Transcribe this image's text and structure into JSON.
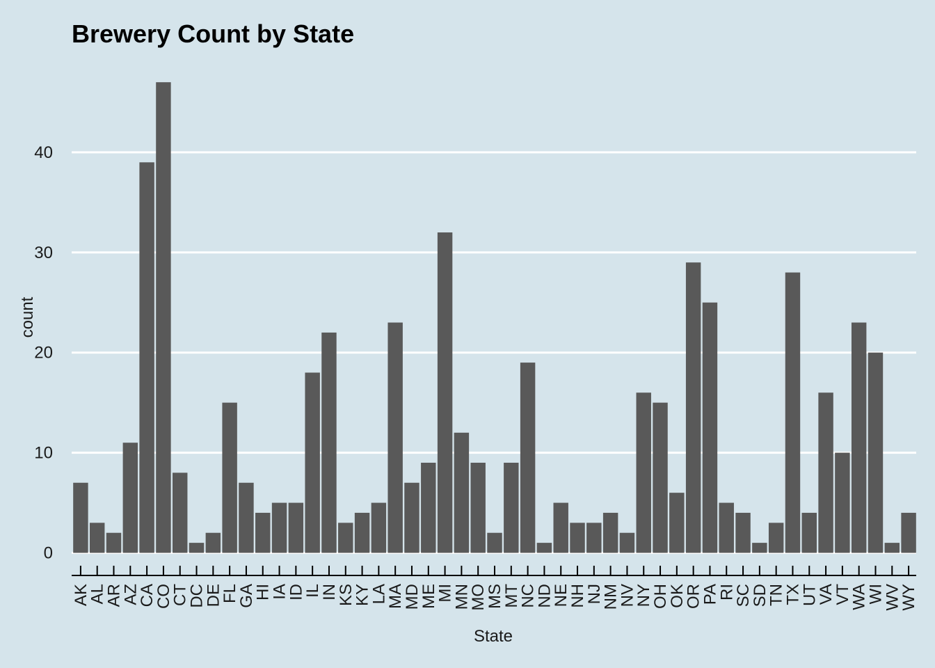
{
  "chart_data": {
    "type": "bar",
    "title": "Brewery Count by State",
    "xlabel": "State",
    "ylabel": "count",
    "categories": [
      "AK",
      "AL",
      "AR",
      "AZ",
      "CA",
      "CO",
      "CT",
      "DC",
      "DE",
      "FL",
      "GA",
      "HI",
      "IA",
      "ID",
      "IL",
      "IN",
      "KS",
      "KY",
      "LA",
      "MA",
      "MD",
      "ME",
      "MI",
      "MN",
      "MO",
      "MS",
      "MT",
      "NC",
      "ND",
      "NE",
      "NH",
      "NJ",
      "NM",
      "NV",
      "NY",
      "OH",
      "OK",
      "OR",
      "PA",
      "RI",
      "SC",
      "SD",
      "TN",
      "TX",
      "UT",
      "VA",
      "VT",
      "WA",
      "WI",
      "WV",
      "WY"
    ],
    "values": [
      7,
      3,
      2,
      11,
      39,
      47,
      8,
      1,
      2,
      15,
      7,
      4,
      5,
      5,
      18,
      22,
      3,
      4,
      5,
      23,
      7,
      9,
      32,
      12,
      9,
      2,
      9,
      19,
      1,
      5,
      3,
      3,
      4,
      2,
      16,
      15,
      6,
      29,
      25,
      5,
      4,
      1,
      3,
      28,
      4,
      16,
      10,
      23,
      20,
      1,
      4
    ],
    "yticks": [
      0,
      10,
      20,
      30,
      40
    ],
    "ylim": [
      0,
      49.4
    ],
    "grid": "horizontal major",
    "colors": {
      "background": "#d5e4eb",
      "bar": "#595959",
      "grid": "#ffffff",
      "axis": "#000000"
    }
  }
}
